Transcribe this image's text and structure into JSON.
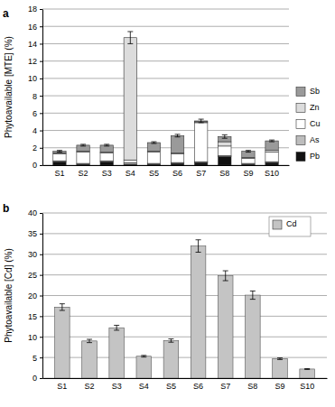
{
  "chart_data": [
    {
      "type": "bar",
      "panel": "a",
      "y_label": "Phytoavailable [MTE] (%)",
      "stacked": true,
      "grid": true,
      "legend": "right",
      "categories": [
        "S1",
        "S2",
        "S3",
        "S4",
        "S5",
        "S6",
        "S7",
        "S8",
        "S9",
        "S10"
      ],
      "ylim": [
        0,
        18
      ],
      "yticks": [
        0,
        2,
        4,
        6,
        8,
        10,
        12,
        14,
        16,
        18
      ],
      "series": [
        {
          "name": "Pb",
          "color": "#111111",
          "values": [
            0.4,
            0.1,
            0.4,
            0.1,
            0.1,
            0.2,
            0.3,
            1.0,
            0.1,
            0.3
          ]
        },
        {
          "name": "As",
          "color": "#bdbdbd",
          "values": [
            0.1,
            0.1,
            0.1,
            0.2,
            0.1,
            0.1,
            0.1,
            0.1,
            0.1,
            0.1
          ]
        },
        {
          "name": "Cu",
          "color": "#ffffff",
          "values": [
            0.8,
            1.3,
            0.9,
            0.3,
            1.3,
            1.0,
            4.5,
            1.1,
            0.6,
            1.1
          ]
        },
        {
          "name": "Zn",
          "color": "#dcdcdc",
          "values": [
            0.1,
            0.1,
            0.1,
            14.1,
            0.1,
            0.1,
            0.1,
            0.5,
            0.1,
            0.2
          ]
        },
        {
          "name": "Sb",
          "color": "#9a9a9a",
          "values": [
            0.2,
            0.7,
            0.8,
            0.0,
            1.0,
            2.0,
            0.1,
            0.6,
            0.7,
            1.1
          ]
        }
      ],
      "errors": [
        0.1,
        0.1,
        0.1,
        0.7,
        0.1,
        0.15,
        0.2,
        0.2,
        0.1,
        0.1
      ]
    },
    {
      "type": "bar",
      "panel": "b",
      "y_label": "Phytoavailable [Cd] (%)",
      "grid": true,
      "legend": "top right",
      "categories": [
        "S1",
        "S2",
        "S3",
        "S4",
        "S5",
        "S6",
        "S7",
        "S8",
        "S9",
        "S10"
      ],
      "ylim": [
        0,
        40
      ],
      "yticks": [
        0,
        5,
        10,
        15,
        20,
        25,
        30,
        35,
        40
      ],
      "series": [
        {
          "name": "Cd",
          "color": "#c4c4c4",
          "values": [
            17.2,
            9.0,
            12.2,
            5.3,
            9.1,
            32.0,
            24.8,
            20.1,
            4.7,
            2.2
          ],
          "errors": [
            0.8,
            0.4,
            0.6,
            0.2,
            0.4,
            1.5,
            1.2,
            1.0,
            0.2,
            0.1
          ]
        }
      ]
    }
  ]
}
